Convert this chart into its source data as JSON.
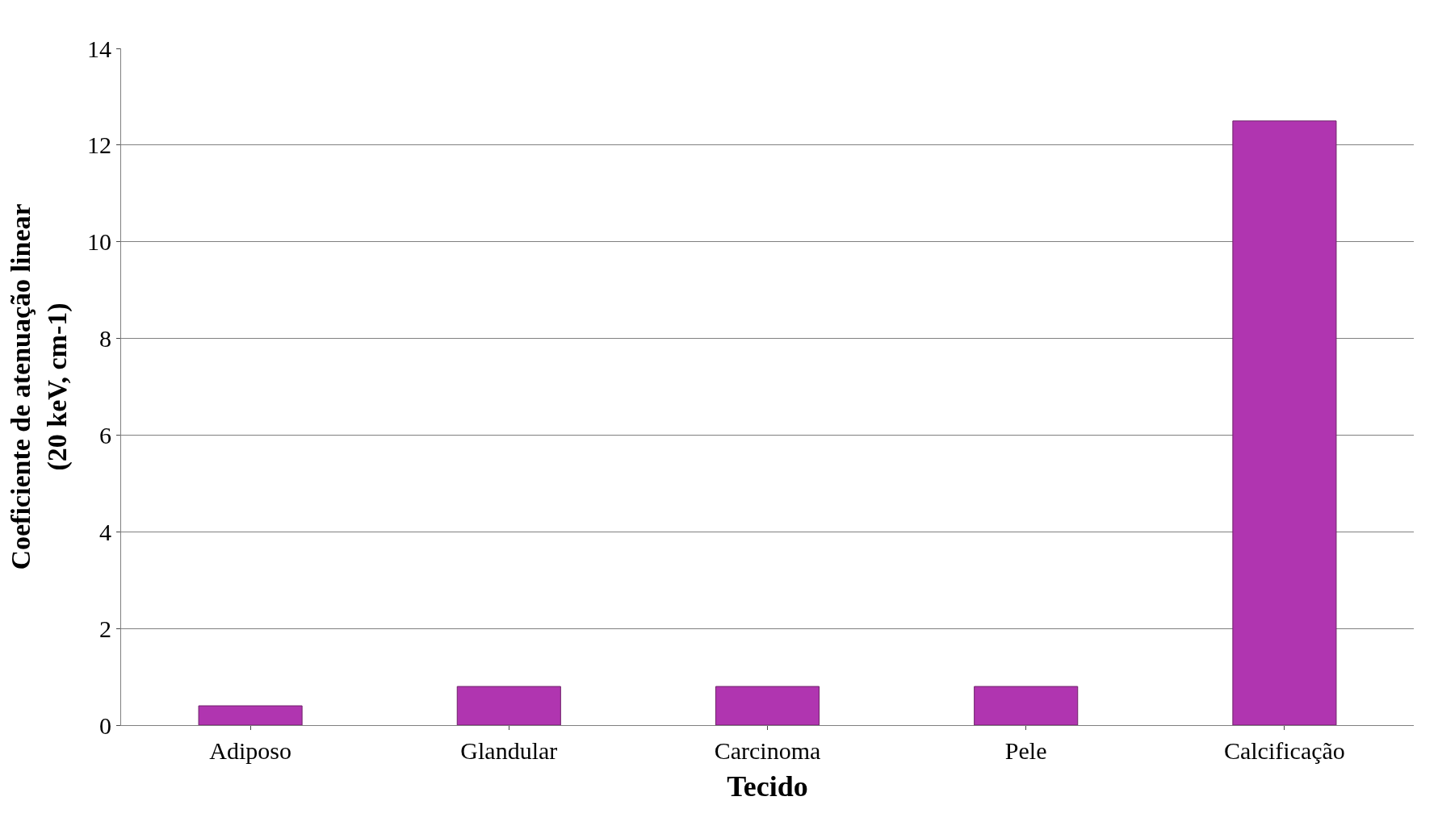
{
  "chart_data": {
    "type": "bar",
    "xlabel": "Tecido",
    "ylabel": "Coeficiente de atenuação linear\n(20 keV, cm-1)",
    "categories": [
      "Adiposo",
      "Glandular",
      "Carcinoma",
      "Pele",
      "Calcificação"
    ],
    "values": [
      0.4,
      0.8,
      0.8,
      0.8,
      12.5
    ],
    "color": "#b035b0",
    "ylim": [
      0,
      14
    ],
    "yticks": [
      0,
      2,
      4,
      6,
      8,
      10,
      12,
      14
    ],
    "grid": "y"
  }
}
